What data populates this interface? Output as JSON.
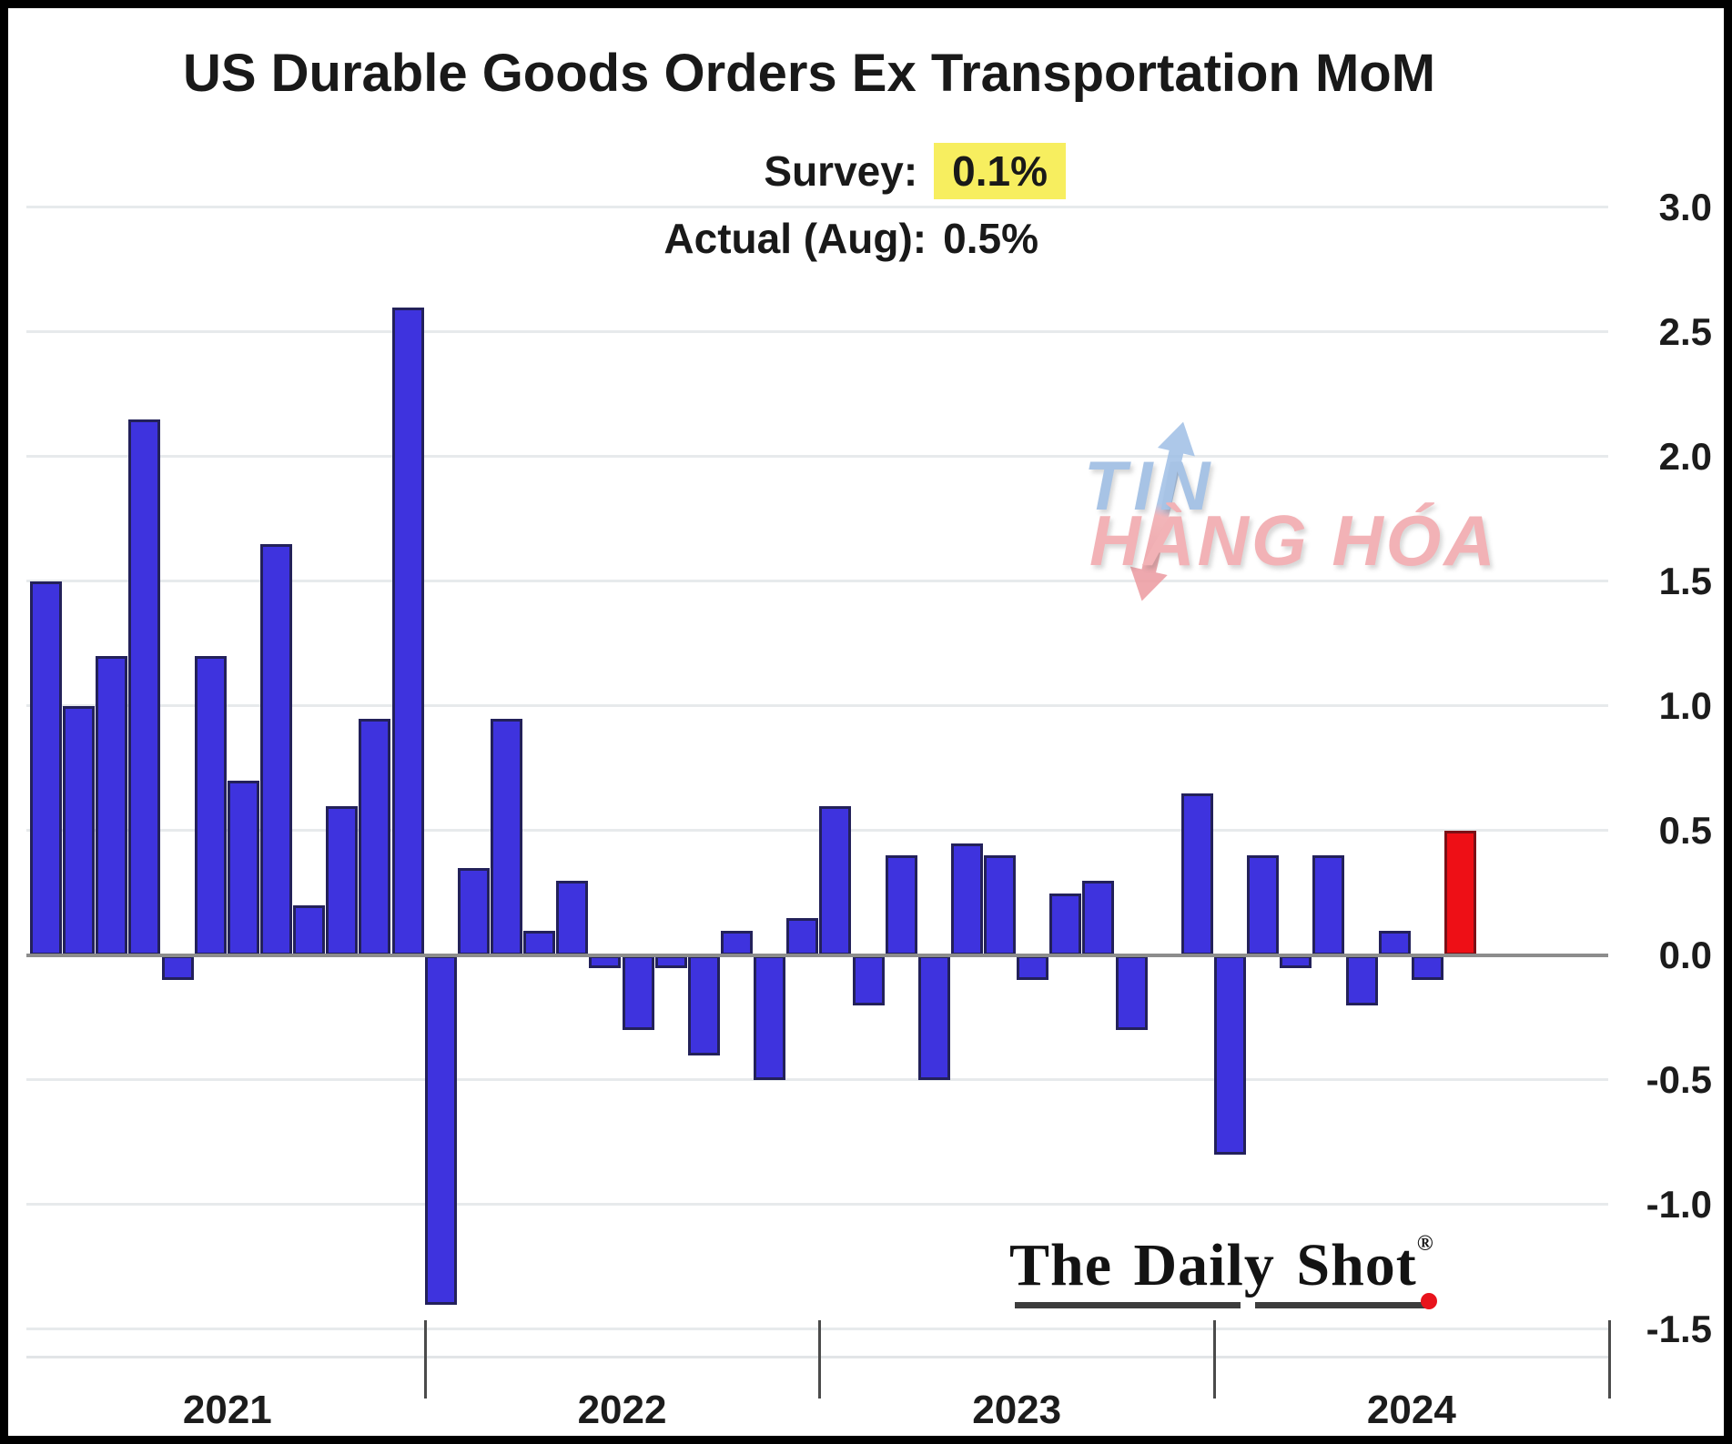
{
  "header": {
    "title": "US Durable Goods Orders Ex Transportation MoM",
    "survey_label": "Survey:",
    "survey_value": "0.1%",
    "actual_label": "Actual (Aug):",
    "actual_value": "0.5%"
  },
  "watermark": {
    "line1": "TIN",
    "line2": "HÀNG HÓA"
  },
  "logo": {
    "text": "The Daily Shot",
    "reg": "®"
  },
  "chart_data": {
    "type": "bar",
    "title": "US Durable Goods Orders Ex Transportation MoM",
    "unit": "percent MoM",
    "ylim": [
      -1.5,
      3.0
    ],
    "grid": true,
    "yticks": [
      {
        "value": 3.0,
        "label": "3.0"
      },
      {
        "value": 2.5,
        "label": "2.5"
      },
      {
        "value": 2.0,
        "label": "2.0"
      },
      {
        "value": 1.5,
        "label": "1.5"
      },
      {
        "value": 1.0,
        "label": "1.0"
      },
      {
        "value": 0.5,
        "label": "0.5"
      },
      {
        "value": 0.0,
        "label": "0.0"
      },
      {
        "value": -0.5,
        "label": "-0.5"
      },
      {
        "value": -1.0,
        "label": "-1.0"
      },
      {
        "value": -1.5,
        "label": "-1.5"
      }
    ],
    "years": [
      {
        "label": "2021",
        "values": [
          1.5,
          1.0,
          1.2,
          2.15,
          -0.1,
          1.2,
          0.7,
          1.65,
          0.2,
          0.6,
          0.95,
          2.6
        ]
      },
      {
        "label": "2022",
        "values": [
          -1.4,
          0.35,
          0.95,
          0.1,
          0.3,
          -0.05,
          -0.3,
          -0.05,
          -0.4,
          0.1,
          -0.5,
          0.15
        ]
      },
      {
        "label": "2023",
        "values": [
          0.6,
          -0.2,
          0.4,
          -0.5,
          0.45,
          0.4,
          -0.1,
          0.25,
          0.3,
          -0.3,
          0.0,
          0.65
        ]
      },
      {
        "label": "2024",
        "values": [
          -0.8,
          0.4,
          -0.05,
          0.4,
          -0.2,
          0.1,
          -0.1,
          0.5
        ]
      }
    ],
    "highlight_bar": {
      "year_index": 3,
      "month_index": 7,
      "meaning": "Actual (Aug) 0.5%"
    },
    "bar_color": "#3e33de",
    "highlight_color": "#ee0f16",
    "legend": "none"
  }
}
